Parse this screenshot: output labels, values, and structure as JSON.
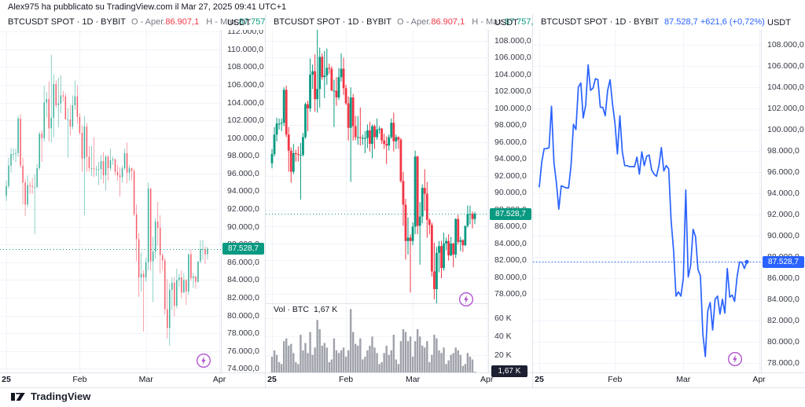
{
  "attribution": "Alex975 ha pubblicato su TradingView.com il Mar 27, 2025 09:41 UTC+1",
  "footer": {
    "brand": "TradingView"
  },
  "colors": {
    "up": "#089981",
    "down": "#f23645",
    "line": "#2962ff",
    "grid": "#f0f3fa",
    "vol_grid": "#f4f5f9",
    "border": "#e0e3eb",
    "text_dark": "#131722",
    "text_muted": "#787b86",
    "axis_text": "#363a45",
    "volume_bar": "#9598a1",
    "vol_tag_bg": "#1c2030",
    "flash": "#b04fd0",
    "price_tag_candles": "#089981",
    "price_tag_line": "#2962ff"
  },
  "panels": [
    {
      "header": {
        "symbol": "BTCUSDT SPOT · 1D · BYBIT",
        "open_label": "O - Aper.",
        "open_value": "86.907,1",
        "high_label": "H - Max.",
        "high_value": "87.757,9...",
        "axis_currency": "USDT"
      },
      "price_tag": "87.528,7",
      "y_ticks": [
        112000,
        110000,
        108000,
        106000,
        104000,
        102000,
        100000,
        98000,
        96000,
        94000,
        92000,
        90000,
        88000,
        86000,
        84000,
        82000,
        80000,
        78000,
        76000,
        74000
      ],
      "x_ticks": [
        {
          "label": "25",
          "i": 0,
          "bold": true
        },
        {
          "label": "Feb",
          "i": 31
        },
        {
          "label": "Mar",
          "i": 59
        },
        {
          "label": "Apr",
          "i": 90
        }
      ]
    },
    {
      "header": {
        "symbol": "BTCUSDT SPOT · 1D · BYBIT",
        "open_label": "O - Aper.",
        "open_value": "86.907,1",
        "high_label": "H - Max.",
        "high_value": "87.757,9...",
        "axis_currency": "USDT"
      },
      "price_tag": "87.528,7",
      "volume_label": "Vol · BTC",
      "volume_value": "1,67 K",
      "volume_tag": "1,67 K",
      "y_ticks": [
        108000,
        106000,
        104000,
        102000,
        100000,
        98000,
        96000,
        94000,
        92000,
        90000,
        88000,
        86000,
        84000,
        82000,
        80000,
        78000
      ],
      "vol_ticks": [
        60,
        40,
        20
      ],
      "x_ticks": [
        {
          "label": "25",
          "i": 0,
          "bold": true
        },
        {
          "label": "Feb",
          "i": 31
        },
        {
          "label": "Mar",
          "i": 59
        },
        {
          "label": "Apr",
          "i": 90
        }
      ]
    },
    {
      "header": {
        "symbol": "BTCUSDT SPOT · 1D · BYBIT",
        "price": "87.528,7",
        "change": "+621,6",
        "change_pct": "(+0,72%)",
        "axis_currency": "USDT"
      },
      "price_tag": "87.528,7",
      "y_ticks": [
        108000,
        106000,
        104000,
        102000,
        100000,
        98000,
        96000,
        94000,
        92000,
        90000,
        88000,
        86000,
        84000,
        82000,
        80000,
        78000
      ],
      "x_ticks": [
        {
          "label": "25",
          "i": 0,
          "bold": true
        },
        {
          "label": "Feb",
          "i": 31
        },
        {
          "label": "Mar",
          "i": 59
        },
        {
          "label": "Apr",
          "i": 90
        }
      ]
    }
  ],
  "chart_data": {
    "symbol": "BTCUSDT SPOT",
    "exchange": "BYBIT",
    "timeframe": "1D",
    "start_date": "2025-01-01",
    "end_date": "2025-03-27",
    "last_price": 87528.7,
    "last_change": 621.6,
    "last_change_pct": 0.72,
    "last_volume_k": 1.67,
    "charts": [
      {
        "type": "candlestick",
        "title": "BTCUSDT SPOT · 1D · BYBIT",
        "ylim": [
          73400,
          112200
        ],
        "x_ticks": [
          "25",
          "Feb",
          "Mar",
          "Apr"
        ],
        "grid": true
      },
      {
        "type": "candlestick",
        "title": "BTCUSDT SPOT · 1D · BYBIT",
        "ylim": [
          76900,
          109300
        ],
        "volume_pane": true,
        "vol_ylim_k": [
          0,
          75
        ],
        "x_ticks": [
          "25",
          "Feb",
          "Mar",
          "Apr"
        ],
        "grid": true
      },
      {
        "type": "line",
        "title": "BTCUSDT SPOT · 1D · BYBIT",
        "ylim": [
          77000,
          109400
        ],
        "x_ticks": [
          "25",
          "Feb",
          "Mar",
          "Apr"
        ],
        "grid": true
      }
    ],
    "ohlc": [
      [
        93500,
        95200,
        92900,
        94600
      ],
      [
        94600,
        97800,
        94300,
        96900
      ],
      [
        96900,
        98900,
        96100,
        98200
      ],
      [
        98200,
        98800,
        97500,
        98200
      ],
      [
        98200,
        98800,
        97300,
        98300
      ],
      [
        98300,
        102500,
        97900,
        102200
      ],
      [
        102200,
        102700,
        96600,
        96900
      ],
      [
        96900,
        97800,
        92500,
        95000
      ],
      [
        95000,
        95400,
        91200,
        92500
      ],
      [
        92500,
        95800,
        92200,
        94700
      ],
      [
        94700,
        95100,
        93700,
        94600
      ],
      [
        94600,
        95500,
        93700,
        94500
      ],
      [
        94500,
        95900,
        89200,
        94500
      ],
      [
        94500,
        97100,
        94300,
        96600
      ],
      [
        96600,
        100700,
        96400,
        100500
      ],
      [
        100500,
        100900,
        97300,
        100000
      ],
      [
        100000,
        105900,
        99600,
        104000
      ],
      [
        104000,
        105200,
        102300,
        104400
      ],
      [
        104400,
        106400,
        99600,
        101100
      ],
      [
        101100,
        109400,
        99500,
        102300
      ],
      [
        102300,
        107200,
        100100,
        106100
      ],
      [
        106100,
        106500,
        103400,
        103700
      ],
      [
        103700,
        106800,
        101200,
        103900
      ],
      [
        103900,
        107100,
        102800,
        104800
      ],
      [
        104800,
        105300,
        104100,
        104700
      ],
      [
        104700,
        105000,
        102100,
        102100
      ],
      [
        102100,
        103400,
        97800,
        102100
      ],
      [
        102100,
        103700,
        100300,
        101300
      ],
      [
        101300,
        104800,
        101000,
        103700
      ],
      [
        103700,
        106500,
        103200,
        104700
      ],
      [
        104700,
        106000,
        101600,
        102400
      ],
      [
        102400,
        102800,
        100400,
        100600
      ],
      [
        100600,
        101400,
        96200,
        97700
      ],
      [
        97700,
        102500,
        91300,
        101300
      ],
      [
        101300,
        101700,
        96200,
        97900
      ],
      [
        97900,
        99100,
        96200,
        96600
      ],
      [
        96600,
        99100,
        95700,
        96600
      ],
      [
        96600,
        100100,
        95600,
        96500
      ],
      [
        96500,
        96900,
        95700,
        96500
      ],
      [
        96500,
        97300,
        94700,
        96500
      ],
      [
        96500,
        98100,
        95300,
        97400
      ],
      [
        97400,
        98400,
        94900,
        95800
      ],
      [
        95800,
        98100,
        94100,
        97900
      ],
      [
        97900,
        98100,
        95200,
        96600
      ],
      [
        96600,
        98800,
        96300,
        97500
      ],
      [
        97500,
        97900,
        97000,
        97600
      ],
      [
        97600,
        97700,
        95800,
        96200
      ],
      [
        96200,
        97000,
        95200,
        95800
      ],
      [
        95800,
        96700,
        93400,
        95600
      ],
      [
        95600,
        96900,
        95000,
        96600
      ],
      [
        96600,
        98800,
        96400,
        98300
      ],
      [
        98300,
        99500,
        94900,
        96100
      ],
      [
        96100,
        96900,
        95200,
        96600
      ],
      [
        96600,
        96700,
        95200,
        96300
      ],
      [
        96300,
        96500,
        91200,
        91400
      ],
      [
        91400,
        92500,
        86100,
        88600
      ],
      [
        88600,
        89300,
        82100,
        84300
      ],
      [
        84300,
        87100,
        82700,
        84700
      ],
      [
        84700,
        85100,
        78200,
        84300
      ],
      [
        84300,
        86500,
        83800,
        86000
      ],
      [
        86000,
        95000,
        85100,
        94300
      ],
      [
        94300,
        94400,
        85100,
        86100
      ],
      [
        86100,
        88900,
        81500,
        87200
      ],
      [
        87200,
        91000,
        86400,
        90600
      ],
      [
        90600,
        92800,
        87900,
        89900
      ],
      [
        89900,
        91300,
        84700,
        86800
      ],
      [
        86800,
        87000,
        85100,
        86200
      ],
      [
        86200,
        86500,
        80100,
        80700
      ],
      [
        80700,
        84100,
        77400,
        78600
      ],
      [
        78600,
        83600,
        76600,
        82900
      ],
      [
        82900,
        84300,
        80600,
        83700
      ],
      [
        83700,
        84300,
        79900,
        81100
      ],
      [
        81100,
        85300,
        80800,
        84000
      ],
      [
        84000,
        84700,
        83200,
        84300
      ],
      [
        84300,
        85100,
        82000,
        82600
      ],
      [
        82600,
        84800,
        82500,
        84000
      ],
      [
        84000,
        84100,
        81200,
        82700
      ],
      [
        82700,
        87000,
        82300,
        86900
      ],
      [
        86900,
        87400,
        83900,
        84200
      ],
      [
        84200,
        84800,
        83100,
        84400
      ],
      [
        84400,
        84500,
        83000,
        83800
      ],
      [
        83800,
        86100,
        83700,
        86100
      ],
      [
        86100,
        88500,
        85900,
        87500
      ],
      [
        87500,
        88500,
        86300,
        87500
      ],
      [
        87500,
        87800,
        85800,
        86900
      ],
      [
        86907,
        87758,
        86300,
        87529
      ]
    ],
    "volume_k": [
      18,
      25,
      20,
      12,
      10,
      35,
      38,
      30,
      32,
      22,
      12,
      10,
      42,
      25,
      33,
      22,
      45,
      20,
      28,
      58,
      48,
      30,
      33,
      28,
      12,
      15,
      38,
      25,
      22,
      25,
      28,
      18,
      25,
      70,
      45,
      32,
      30,
      38,
      15,
      18,
      25,
      30,
      40,
      28,
      22,
      10,
      12,
      22,
      30,
      20,
      25,
      42,
      15,
      10,
      35,
      48,
      45,
      35,
      40,
      18,
      35,
      48,
      40,
      30,
      28,
      35,
      12,
      20,
      42,
      38,
      25,
      22,
      28,
      10,
      14,
      20,
      22,
      28,
      25,
      20,
      8,
      10,
      22,
      18,
      15,
      1.67
    ]
  }
}
